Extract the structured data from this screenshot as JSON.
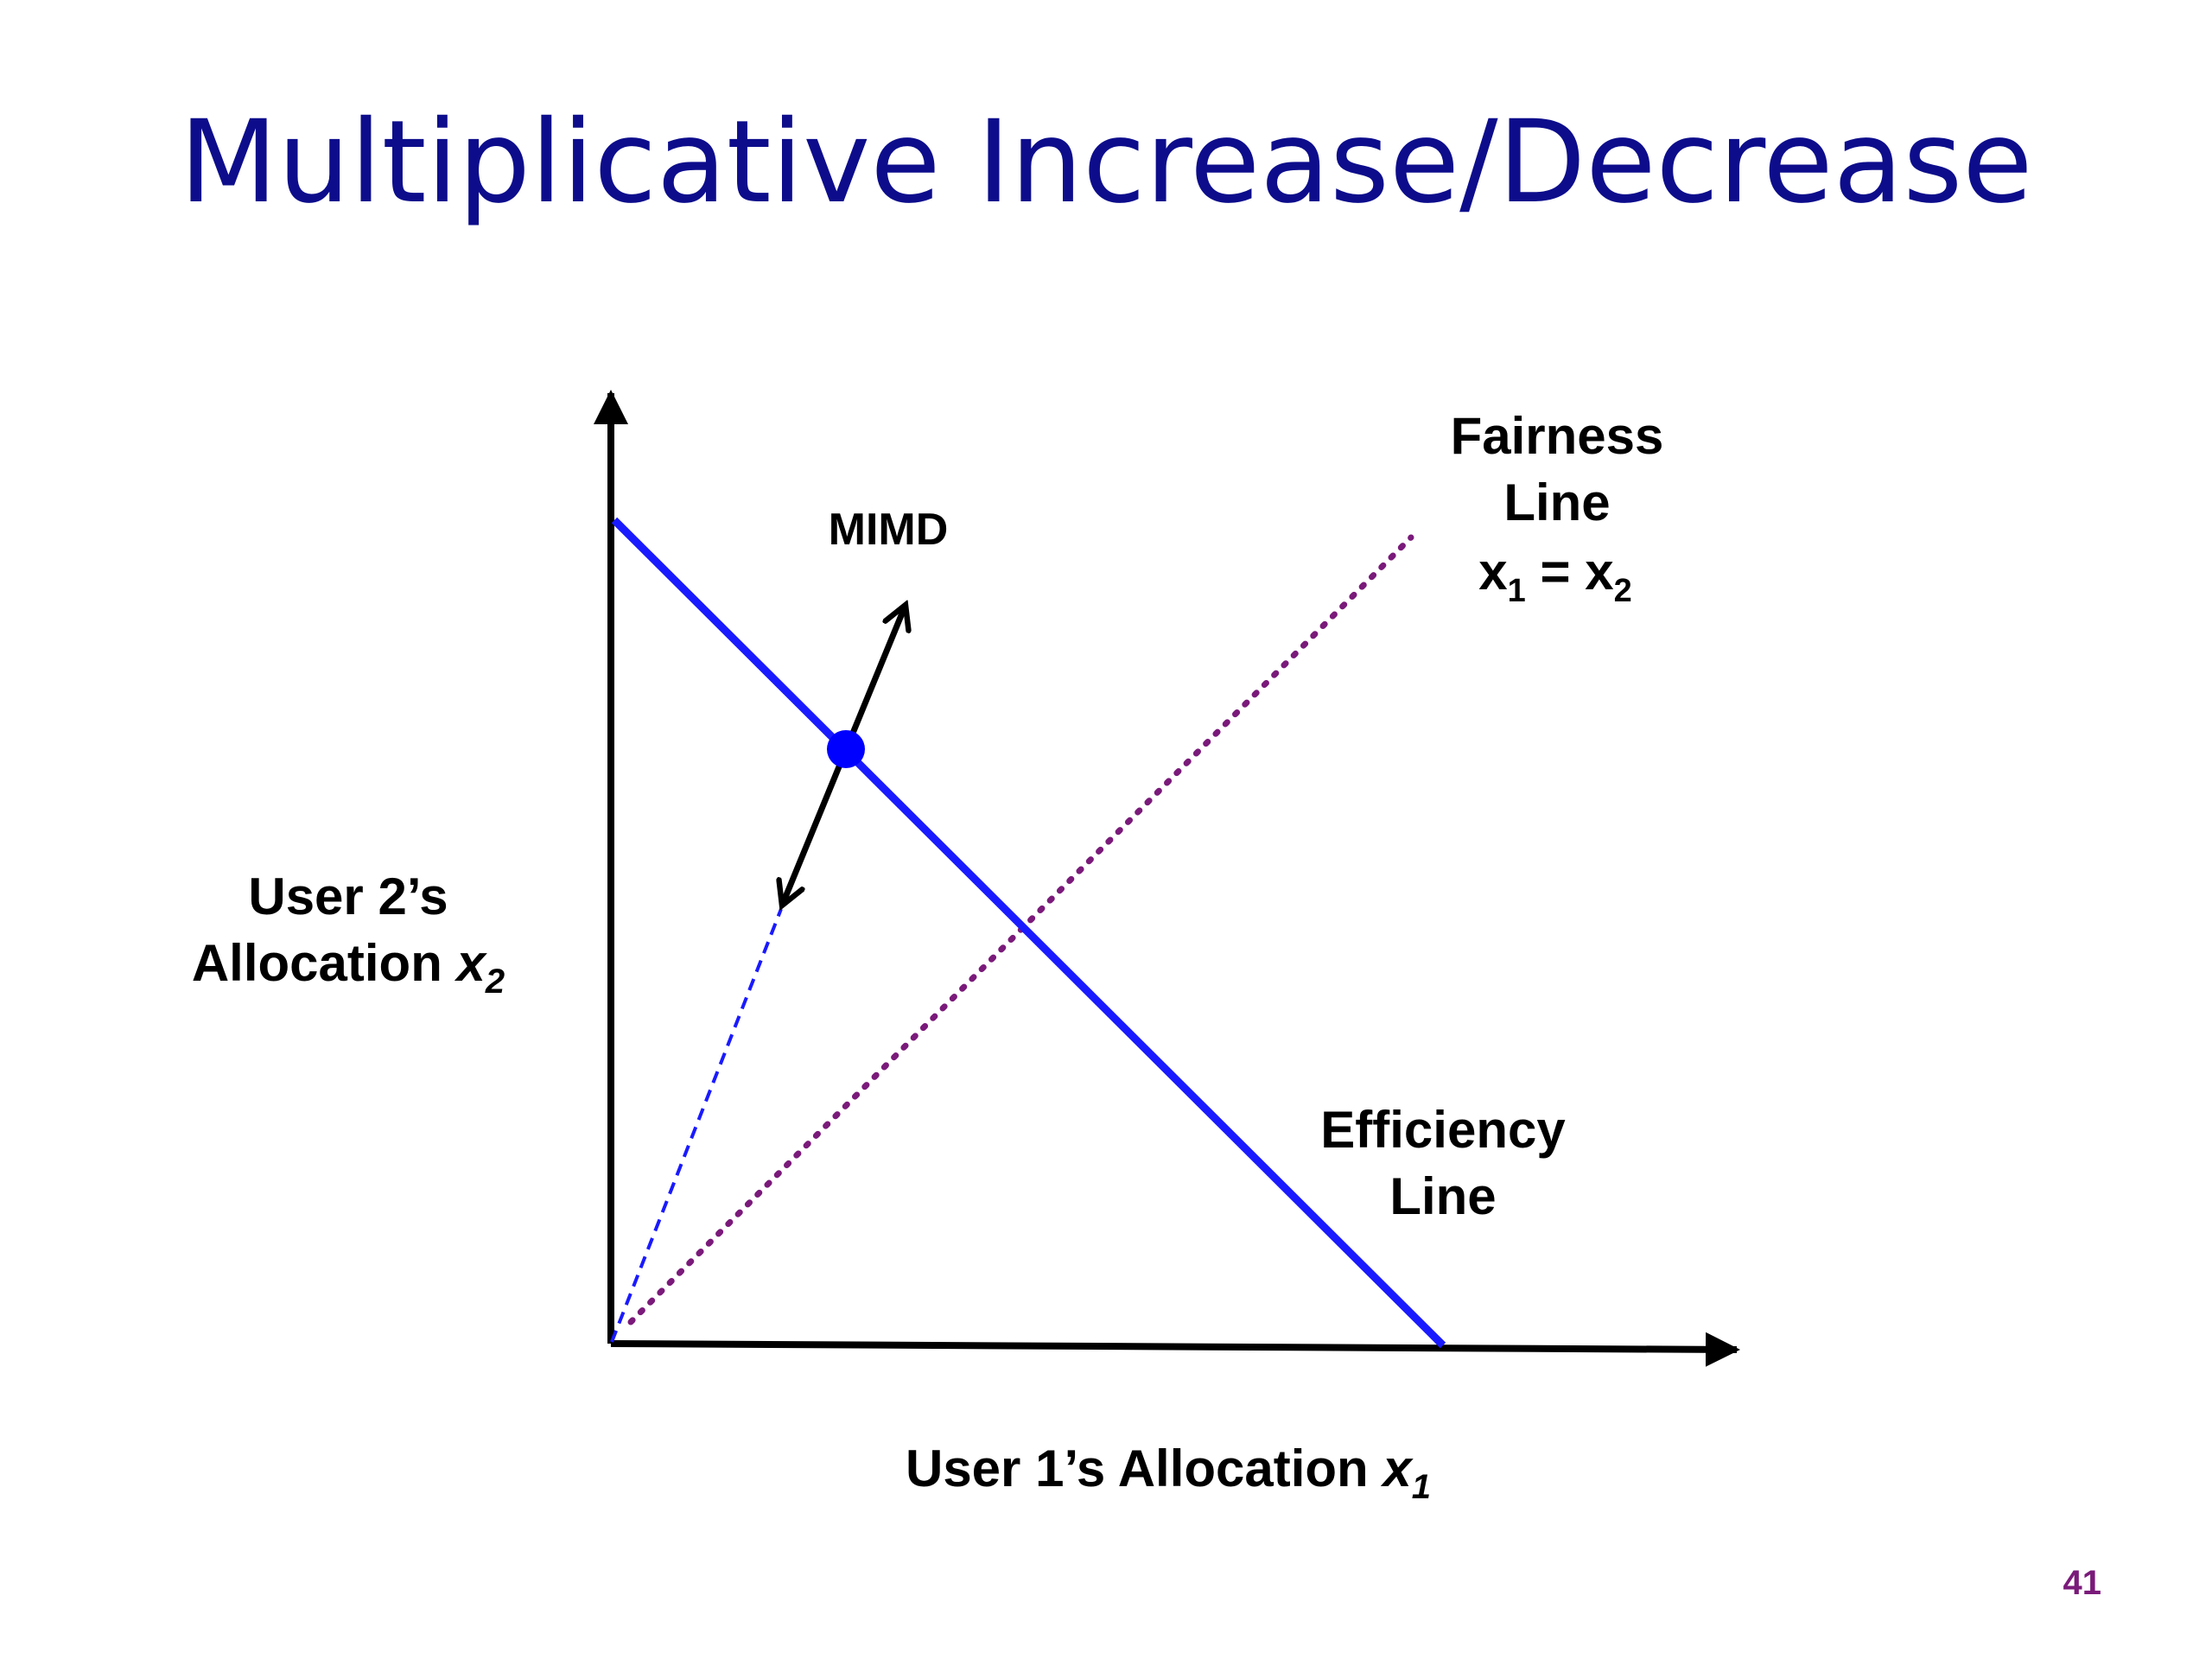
{
  "slide": {
    "title": "Multiplicative Increase/Decrease",
    "page_number": "41"
  },
  "diagram": {
    "y_axis_label": {
      "line1": "User 2’s",
      "line2_text": "Allocation ",
      "line2_var": "x",
      "line2_sub": "2"
    },
    "x_axis_label": {
      "text": "User 1’s Allocation ",
      "var": "x",
      "sub": "1"
    },
    "fairness_label": {
      "line1": "Fairness",
      "line2": "Line",
      "eq_a": "x",
      "eq_a_sub": "1",
      "eq_mid": " = ",
      "eq_b": "x",
      "eq_b_sub": "2"
    },
    "efficiency_label": {
      "line1": "Efficiency",
      "line2": "Line"
    },
    "mimd_label": "MIMD",
    "colors": {
      "axis": "#000000",
      "efficiency_line": "#1a1aff",
      "fairness_line": "#7a1a7a",
      "allocation_point": "#0000ff",
      "ray": "#1a1aff",
      "title": "#0d0d8c",
      "page_number": "#7a1a7a"
    }
  }
}
